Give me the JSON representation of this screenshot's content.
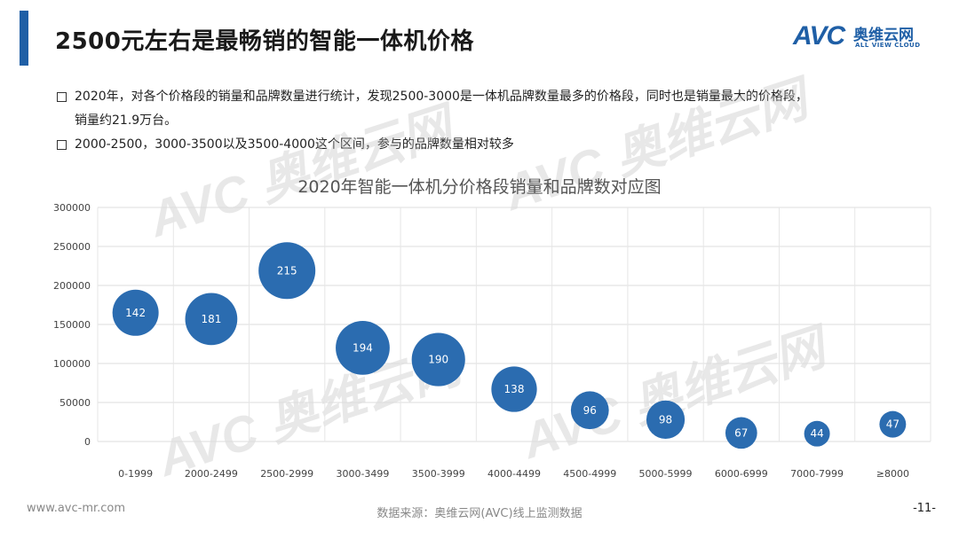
{
  "header": {
    "title": "2500元左右是最畅销的智能一体机价格",
    "logo_mark": "AVC",
    "logo_cn": "奥维云网",
    "logo_en": "ALL VIEW CLOUD"
  },
  "bullets": [
    {
      "line1": "2020年，对各个价格段的销量和品牌数量进行统计，发现2500-3000是一体机品牌数量最多的价格段，同时也是销量最大的价格段，",
      "line2": "销量约21.9万台。"
    },
    {
      "line1": "2000-2500，3000-3500以及3500-4000这个区间，参与的品牌数量相对较多",
      "line2": ""
    }
  ],
  "chart_data": {
    "type": "scatter",
    "title": "2020年智能一体机分价格段销量和品牌数对应图",
    "categories": [
      "0-1999",
      "2000-2499",
      "2500-2999",
      "3000-3499",
      "3500-3999",
      "4000-4499",
      "4500-4999",
      "5000-5999",
      "6000-6999",
      "7000-7999",
      "≥8000"
    ],
    "sales": [
      165000,
      157000,
      219000,
      120000,
      105000,
      67000,
      40000,
      28000,
      11000,
      10000,
      22000
    ],
    "brands": [
      142,
      181,
      215,
      194,
      190,
      138,
      96,
      98,
      67,
      44,
      47
    ],
    "yticks": [
      0,
      50000,
      100000,
      150000,
      200000,
      250000,
      300000
    ],
    "ylim": [
      0,
      300000
    ],
    "bubble_color": "#2b6cb0"
  },
  "watermarks": [
    "AVC",
    "奥维云网",
    "ALL VIEW CLOUD"
  ],
  "footer": {
    "url": "www.avc-mr.com",
    "source": "数据来源：奥维云网(AVC)线上监测数据",
    "page": "-11-"
  }
}
